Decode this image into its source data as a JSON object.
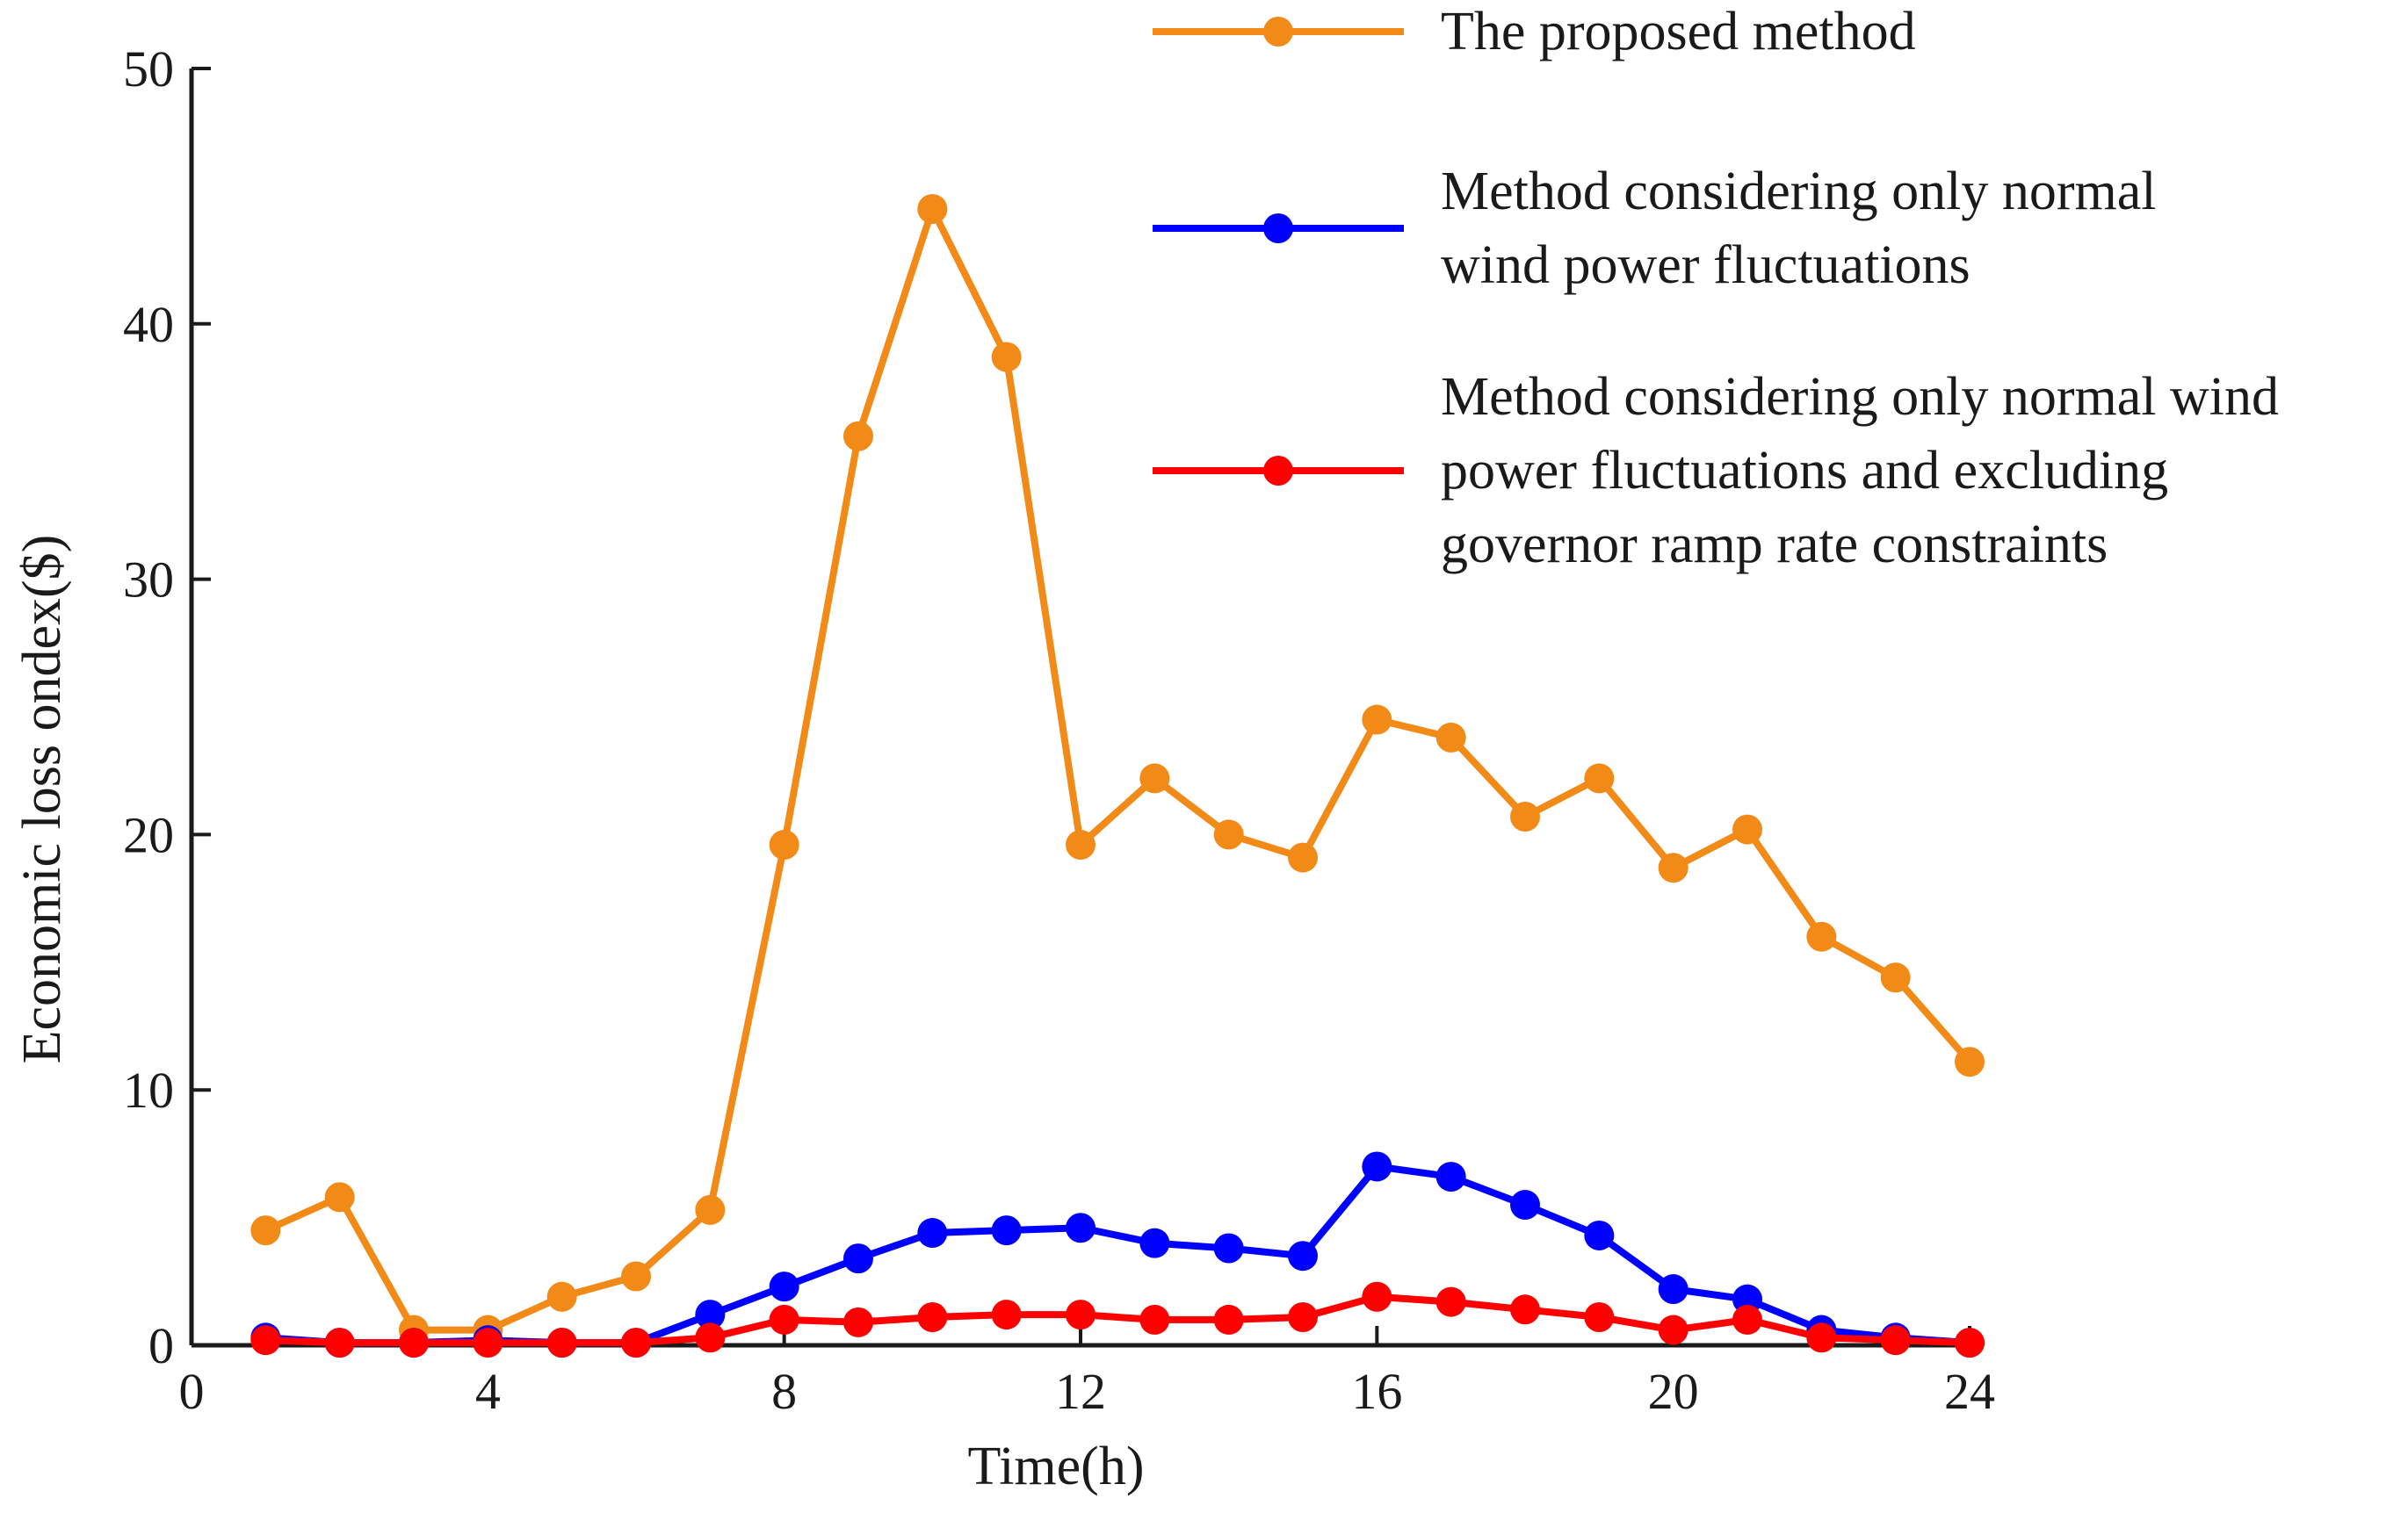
{
  "chart_data": {
    "type": "line",
    "title": "",
    "xlabel": "Time(h)",
    "ylabel": "Economic loss ondex($)",
    "xlim": [
      0,
      24
    ],
    "ylim": [
      0,
      50
    ],
    "xticks": [
      0,
      4,
      8,
      12,
      16,
      20,
      24
    ],
    "yticks": [
      0,
      10,
      20,
      30,
      40,
      50
    ],
    "grid": false,
    "legend_position": "top-right",
    "x": [
      1,
      2,
      3,
      4,
      5,
      6,
      7,
      8,
      9,
      10,
      11,
      12,
      13,
      14,
      15,
      16,
      17,
      18,
      19,
      20,
      21,
      22,
      23,
      24
    ],
    "series": [
      {
        "name": "The proposed method",
        "legend_lines": [
          "The proposed method"
        ],
        "color": "#F28A18",
        "values": [
          4.5,
          5.8,
          0.6,
          0.6,
          1.9,
          2.7,
          5.3,
          19.6,
          35.6,
          44.5,
          38.7,
          19.6,
          22.2,
          20.0,
          19.1,
          24.5,
          23.8,
          20.7,
          22.2,
          18.7,
          20.2,
          16.0,
          14.4,
          11.1
        ]
      },
      {
        "name": "Method considering only normal wind power fluctuations",
        "legend_lines": [
          "Method considering only normal",
          "wind power fluctuations"
        ],
        "color": "#0000FF",
        "values": [
          0.3,
          0.1,
          0.1,
          0.2,
          0.1,
          0.1,
          1.2,
          2.3,
          3.4,
          4.4,
          4.5,
          4.6,
          4.0,
          3.8,
          3.5,
          7.0,
          6.6,
          5.5,
          4.3,
          2.2,
          1.8,
          0.6,
          0.3,
          0.1
        ]
      },
      {
        "name": "Method considering only normal wind power fluctuations and excluding governor ramp rate constraints",
        "legend_lines": [
          "Method considering only normal wind",
          "power fluctuations and excluding",
          "governor ramp rate constraints"
        ],
        "color": "#FF0000",
        "values": [
          0.2,
          0.1,
          0.1,
          0.1,
          0.1,
          0.1,
          0.3,
          1.0,
          0.9,
          1.1,
          1.2,
          1.2,
          1.0,
          1.0,
          1.1,
          1.9,
          1.7,
          1.4,
          1.1,
          0.6,
          1.0,
          0.3,
          0.2,
          0.1
        ]
      }
    ]
  }
}
